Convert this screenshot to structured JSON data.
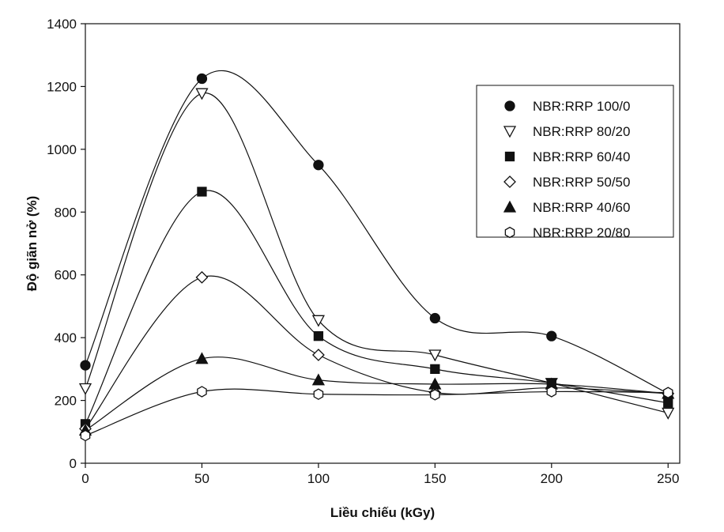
{
  "chart_data": {
    "type": "scatter",
    "title": "",
    "xlabel": "Liều chiếu (kGy)",
    "ylabel": "Độ giãn nở (%)",
    "x": [
      0,
      50,
      100,
      150,
      200,
      250
    ],
    "xlim": [
      0,
      255
    ],
    "ylim": [
      0,
      1400
    ],
    "xticks": [
      0,
      50,
      100,
      150,
      200,
      250
    ],
    "yticks": [
      0,
      200,
      400,
      600,
      800,
      1000,
      1200,
      1400
    ],
    "grid": false,
    "legend_position": "top-right",
    "smooth_lines": true,
    "series": [
      {
        "name": "NBR:RRP 100/0",
        "marker": "filled-circle",
        "values": [
          312,
          1225,
          950,
          462,
          405,
          222
        ]
      },
      {
        "name": "NBR:RRP 80/20",
        "marker": "open-triangle-down",
        "values": [
          238,
          1178,
          455,
          345,
          255,
          160
        ]
      },
      {
        "name": "NBR:RRP 60/40",
        "marker": "filled-square",
        "values": [
          125,
          865,
          405,
          300,
          255,
          192
        ]
      },
      {
        "name": "NBR:RRP 50/50",
        "marker": "open-diamond",
        "values": [
          110,
          592,
          345,
          225,
          240,
          222
        ]
      },
      {
        "name": "NBR:RRP 40/60",
        "marker": "filled-triangle-up",
        "values": [
          105,
          333,
          265,
          252,
          252,
          222
        ]
      },
      {
        "name": "NBR:RRP 20/80",
        "marker": "open-hexagon",
        "values": [
          88,
          228,
          220,
          218,
          228,
          225
        ]
      }
    ]
  }
}
